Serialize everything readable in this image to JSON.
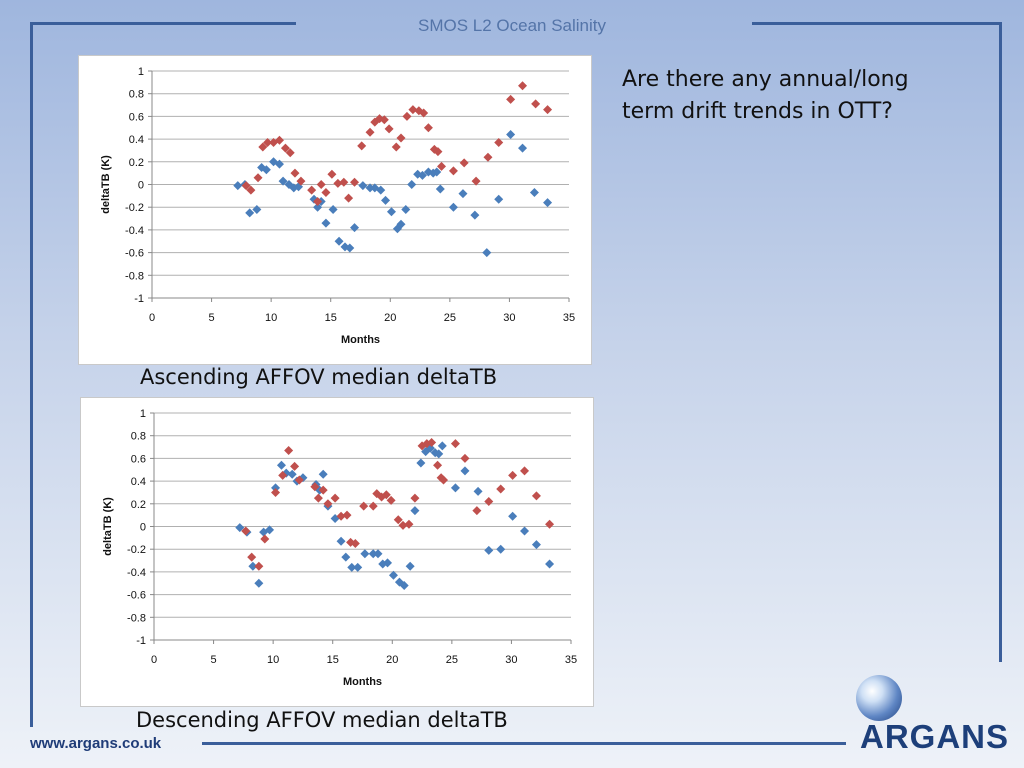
{
  "slide": {
    "title": "SMOS L2 Ocean Salinity",
    "question": "Are there any annual/long term drift trends in OTT?",
    "footer_url": "www.argans.co.uk",
    "logo_text": "ARGANS"
  },
  "chart_data": [
    {
      "type": "scatter",
      "caption": "Ascending AFFOV median deltaTB",
      "xlabel": "Months",
      "ylabel": "deltaTB (K)",
      "xlim": [
        0,
        35
      ],
      "ylim": [
        -1,
        1
      ],
      "xticks": [
        0,
        5,
        10,
        15,
        20,
        25,
        30,
        35
      ],
      "yticks": [
        -1,
        -0.8,
        -0.6,
        -0.4,
        -0.2,
        0,
        0.2,
        0.4,
        0.6,
        0.8,
        1
      ],
      "grid": "horizontal",
      "series": [
        {
          "color": "#4a7ebb",
          "marker": "diamond",
          "points": [
            [
              7.2,
              -0.01
            ],
            [
              7.8,
              0.0
            ],
            [
              8.2,
              -0.25
            ],
            [
              8.8,
              -0.22
            ],
            [
              9.2,
              0.15
            ],
            [
              9.6,
              0.13
            ],
            [
              10.2,
              0.2
            ],
            [
              10.7,
              0.18
            ],
            [
              11.0,
              0.03
            ],
            [
              11.5,
              0.0
            ],
            [
              11.9,
              -0.03
            ],
            [
              12.3,
              -0.02
            ],
            [
              13.6,
              -0.13
            ],
            [
              13.9,
              -0.2
            ],
            [
              14.2,
              -0.15
            ],
            [
              14.6,
              -0.34
            ],
            [
              15.2,
              -0.22
            ],
            [
              15.7,
              -0.5
            ],
            [
              16.2,
              -0.55
            ],
            [
              16.6,
              -0.56
            ],
            [
              17.0,
              -0.38
            ],
            [
              17.7,
              -0.01
            ],
            [
              18.3,
              -0.03
            ],
            [
              18.7,
              -0.03
            ],
            [
              19.2,
              -0.05
            ],
            [
              19.6,
              -0.14
            ],
            [
              20.1,
              -0.24
            ],
            [
              20.6,
              -0.39
            ],
            [
              20.9,
              -0.35
            ],
            [
              21.3,
              -0.22
            ],
            [
              21.8,
              0.0
            ],
            [
              22.3,
              0.09
            ],
            [
              22.7,
              0.08
            ],
            [
              23.2,
              0.11
            ],
            [
              23.6,
              0.1
            ],
            [
              23.9,
              0.11
            ],
            [
              24.2,
              -0.04
            ],
            [
              25.3,
              -0.2
            ],
            [
              26.1,
              -0.08
            ],
            [
              27.1,
              -0.27
            ],
            [
              28.1,
              -0.6
            ],
            [
              29.1,
              -0.13
            ],
            [
              30.1,
              0.44
            ],
            [
              31.1,
              0.32
            ],
            [
              32.1,
              -0.07
            ],
            [
              33.2,
              -0.16
            ]
          ]
        },
        {
          "color": "#c0504d",
          "marker": "diamond",
          "points": [
            [
              7.9,
              -0.01
            ],
            [
              8.3,
              -0.05
            ],
            [
              8.9,
              0.06
            ],
            [
              9.3,
              0.33
            ],
            [
              9.7,
              0.37
            ],
            [
              10.2,
              0.37
            ],
            [
              10.7,
              0.39
            ],
            [
              11.2,
              0.32
            ],
            [
              11.6,
              0.28
            ],
            [
              12.0,
              0.1
            ],
            [
              12.5,
              0.03
            ],
            [
              13.4,
              -0.05
            ],
            [
              13.9,
              -0.15
            ],
            [
              14.2,
              0.0
            ],
            [
              14.6,
              -0.07
            ],
            [
              15.1,
              0.09
            ],
            [
              15.6,
              0.01
            ],
            [
              16.1,
              0.02
            ],
            [
              16.5,
              -0.12
            ],
            [
              17.0,
              0.02
            ],
            [
              17.6,
              0.34
            ],
            [
              18.3,
              0.46
            ],
            [
              18.7,
              0.55
            ],
            [
              19.1,
              0.58
            ],
            [
              19.5,
              0.57
            ],
            [
              19.9,
              0.49
            ],
            [
              20.5,
              0.33
            ],
            [
              20.9,
              0.41
            ],
            [
              21.4,
              0.6
            ],
            [
              21.9,
              0.66
            ],
            [
              22.4,
              0.65
            ],
            [
              22.8,
              0.63
            ],
            [
              23.2,
              0.5
            ],
            [
              23.7,
              0.31
            ],
            [
              24.0,
              0.29
            ],
            [
              24.3,
              0.16
            ],
            [
              25.3,
              0.12
            ],
            [
              26.2,
              0.19
            ],
            [
              27.2,
              0.03
            ],
            [
              28.2,
              0.24
            ],
            [
              29.1,
              0.37
            ],
            [
              30.1,
              0.75
            ],
            [
              31.1,
              0.87
            ],
            [
              32.2,
              0.71
            ],
            [
              33.2,
              0.66
            ]
          ]
        }
      ]
    },
    {
      "type": "scatter",
      "caption": "Descending AFFOV median deltaTB",
      "xlabel": "Months",
      "ylabel": "deltaTB (K)",
      "xlim": [
        0,
        35
      ],
      "ylim": [
        -1,
        1
      ],
      "xticks": [
        0,
        5,
        10,
        15,
        20,
        25,
        30,
        35
      ],
      "yticks": [
        -1,
        -0.8,
        -0.6,
        -0.4,
        -0.2,
        0,
        0.2,
        0.4,
        0.6,
        0.8,
        1
      ],
      "grid": "horizontal",
      "series": [
        {
          "color": "#4a7ebb",
          "marker": "diamond",
          "points": [
            [
              7.2,
              -0.01
            ],
            [
              7.8,
              -0.05
            ],
            [
              8.3,
              -0.35
            ],
            [
              8.8,
              -0.5
            ],
            [
              9.2,
              -0.05
            ],
            [
              9.7,
              -0.03
            ],
            [
              10.2,
              0.34
            ],
            [
              10.7,
              0.54
            ],
            [
              11.1,
              0.47
            ],
            [
              11.6,
              0.46
            ],
            [
              12.0,
              0.4
            ],
            [
              12.5,
              0.43
            ],
            [
              13.6,
              0.37
            ],
            [
              13.9,
              0.32
            ],
            [
              14.2,
              0.46
            ],
            [
              14.6,
              0.18
            ],
            [
              15.2,
              0.07
            ],
            [
              15.7,
              -0.13
            ],
            [
              16.1,
              -0.27
            ],
            [
              16.6,
              -0.36
            ],
            [
              17.1,
              -0.36
            ],
            [
              17.7,
              -0.24
            ],
            [
              18.4,
              -0.24
            ],
            [
              18.8,
              -0.24
            ],
            [
              19.2,
              -0.33
            ],
            [
              19.6,
              -0.32
            ],
            [
              20.1,
              -0.43
            ],
            [
              20.6,
              -0.49
            ],
            [
              21.0,
              -0.52
            ],
            [
              21.5,
              -0.35
            ],
            [
              21.9,
              0.14
            ],
            [
              22.4,
              0.56
            ],
            [
              22.8,
              0.66
            ],
            [
              23.2,
              0.69
            ],
            [
              23.6,
              0.65
            ],
            [
              23.9,
              0.64
            ],
            [
              24.2,
              0.71
            ],
            [
              25.3,
              0.34
            ],
            [
              26.1,
              0.49
            ],
            [
              27.2,
              0.31
            ],
            [
              28.1,
              -0.21
            ],
            [
              29.1,
              -0.2
            ],
            [
              30.1,
              0.09
            ],
            [
              31.1,
              -0.04
            ],
            [
              32.1,
              -0.16
            ],
            [
              33.2,
              -0.33
            ]
          ]
        },
        {
          "color": "#c0504d",
          "marker": "diamond",
          "points": [
            [
              7.7,
              -0.04
            ],
            [
              8.2,
              -0.27
            ],
            [
              8.8,
              -0.35
            ],
            [
              9.3,
              -0.11
            ],
            [
              10.2,
              0.3
            ],
            [
              10.8,
              0.45
            ],
            [
              11.3,
              0.67
            ],
            [
              11.8,
              0.53
            ],
            [
              12.2,
              0.41
            ],
            [
              13.5,
              0.35
            ],
            [
              13.8,
              0.25
            ],
            [
              14.2,
              0.32
            ],
            [
              14.6,
              0.2
            ],
            [
              15.2,
              0.25
            ],
            [
              15.7,
              0.09
            ],
            [
              16.2,
              0.1
            ],
            [
              16.5,
              -0.14
            ],
            [
              16.9,
              -0.15
            ],
            [
              17.6,
              0.18
            ],
            [
              18.4,
              0.18
            ],
            [
              18.7,
              0.29
            ],
            [
              19.1,
              0.26
            ],
            [
              19.5,
              0.28
            ],
            [
              19.9,
              0.23
            ],
            [
              20.5,
              0.06
            ],
            [
              20.9,
              0.01
            ],
            [
              21.4,
              0.02
            ],
            [
              21.9,
              0.25
            ],
            [
              22.5,
              0.71
            ],
            [
              22.9,
              0.73
            ],
            [
              23.3,
              0.74
            ],
            [
              23.8,
              0.54
            ],
            [
              24.1,
              0.43
            ],
            [
              24.3,
              0.41
            ],
            [
              25.3,
              0.73
            ],
            [
              26.1,
              0.6
            ],
            [
              27.1,
              0.14
            ],
            [
              28.1,
              0.22
            ],
            [
              29.1,
              0.33
            ],
            [
              30.1,
              0.45
            ],
            [
              31.1,
              0.49
            ],
            [
              32.1,
              0.27
            ],
            [
              33.2,
              0.02
            ]
          ]
        }
      ]
    }
  ]
}
